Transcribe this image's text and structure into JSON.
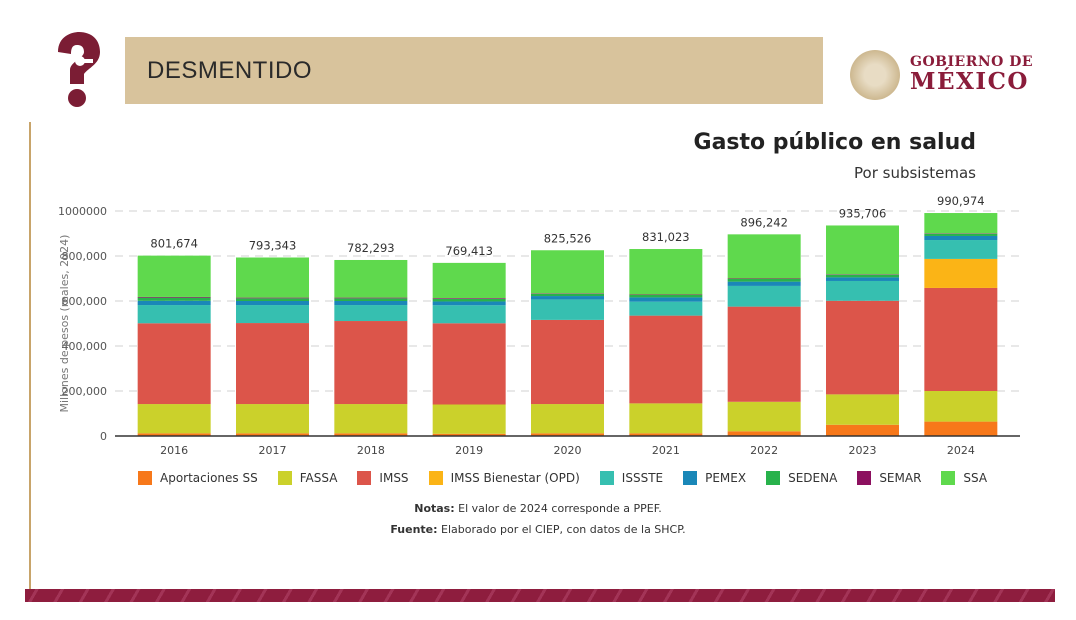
{
  "header": {
    "banner_label": "DESMENTIDO",
    "logo_line1": "GOBIERNO DE",
    "logo_line2": "MÉXICO",
    "icon": "question-mark-icon"
  },
  "chart_data": {
    "type": "bar",
    "stacked": true,
    "title": "Gasto público en salud",
    "subtitle": "Por subsistemas",
    "xlabel": "",
    "ylabel": "Millones de pesos (reales, 2024)",
    "ylim": [
      0,
      1000000
    ],
    "yticks": [
      0,
      200000,
      400000,
      600000,
      800000,
      1000000
    ],
    "ytick_labels": [
      "0",
      "200,000",
      "400,000",
      "600,000",
      "800,000",
      "1000000"
    ],
    "grid": true,
    "legend_position": "bottom",
    "categories": [
      "2016",
      "2017",
      "2018",
      "2019",
      "2020",
      "2021",
      "2022",
      "2023",
      "2024"
    ],
    "totals": [
      801674,
      793343,
      782293,
      769413,
      825526,
      831023,
      896242,
      935706,
      990974
    ],
    "total_labels": [
      "801,674",
      "793,343",
      "782,293",
      "769,413",
      "825,526",
      "831,023",
      "896,242",
      "935,706",
      "990,974"
    ],
    "series": [
      {
        "name": "Aportaciones SS",
        "color": "#f7781a",
        "values": [
          12000,
          12000,
          12000,
          10000,
          12000,
          12000,
          21000,
          50000,
          64000
        ]
      },
      {
        "name": "FASSA",
        "color": "#cbd12b",
        "values": [
          130000,
          130000,
          130000,
          130000,
          130000,
          133000,
          131000,
          135000,
          136000
        ]
      },
      {
        "name": "IMSS",
        "color": "#dc554a",
        "values": [
          359000,
          360000,
          369000,
          361000,
          374000,
          390000,
          423000,
          416000,
          458000
        ]
      },
      {
        "name": "IMSS Bienestar (OPD)",
        "color": "#fbb416",
        "values": [
          0,
          0,
          0,
          0,
          0,
          0,
          0,
          0,
          129000
        ]
      },
      {
        "name": "ISSSTE",
        "color": "#36bfb0",
        "values": [
          81000,
          80000,
          71000,
          80000,
          91000,
          62000,
          92000,
          88000,
          84000
        ]
      },
      {
        "name": "PEMEX",
        "color": "#1a87b8",
        "values": [
          19000,
          18000,
          18000,
          17000,
          15000,
          19000,
          19000,
          16000,
          18000
        ]
      },
      {
        "name": "SEDENA",
        "color": "#28b24b",
        "values": [
          14000,
          12000,
          12000,
          12000,
          10000,
          11000,
          12000,
          12000,
          10000
        ]
      },
      {
        "name": "SEMAR",
        "color": "#8c105f",
        "values": [
          3000,
          3000,
          3000,
          3000,
          2000,
          2000,
          2000,
          2000,
          2000
        ]
      },
      {
        "name": "SSA",
        "color": "#5fd94d",
        "values": [
          183674,
          178343,
          167293,
          156413,
          191526,
          202023,
          196242,
          216706,
          89974
        ]
      }
    ]
  },
  "notes": {
    "notas_label": "Notas:",
    "notas_text": " El valor de 2024 corresponde a PPEF.",
    "fuente_label": "Fuente:",
    "fuente_text": " Elaborado por el CIEP, con datos de la SHCP."
  }
}
